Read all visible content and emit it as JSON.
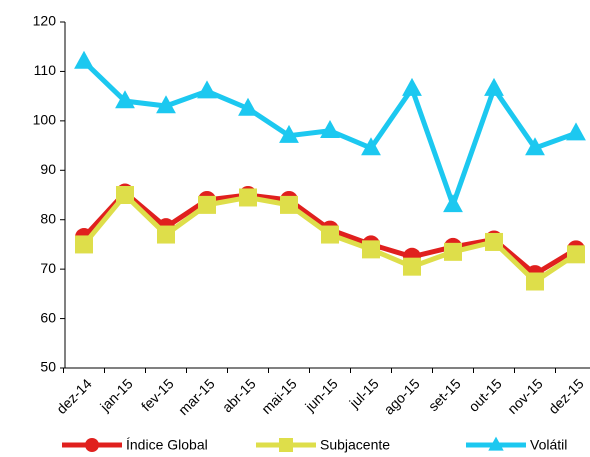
{
  "chart_data": {
    "type": "line",
    "categories": [
      "dez-14",
      "jan-15",
      "fev-15",
      "mar-15",
      "abr-15",
      "mai-15",
      "jun-15",
      "jul-15",
      "ago-15",
      "set-15",
      "out-15",
      "nov-15",
      "dez-15"
    ],
    "series": [
      {
        "name": "Índice Global",
        "color": "#e0201e",
        "marker": "circle",
        "values": [
          76.5,
          85.5,
          78.5,
          84,
          85,
          84,
          78,
          75,
          72.5,
          74.5,
          76,
          69,
          74
        ]
      },
      {
        "name": "Subjacente",
        "color": "#dede4a",
        "marker": "square",
        "values": [
          75,
          85,
          77,
          83,
          84.5,
          83,
          77,
          74,
          70.5,
          73.5,
          75.5,
          67.5,
          73
        ]
      },
      {
        "name": "Volátil",
        "color": "#1cc8f0",
        "marker": "triangle",
        "values": [
          112,
          104,
          103,
          106,
          102.5,
          97,
          98,
          94.5,
          106.5,
          83,
          106.5,
          94.5,
          97.5
        ]
      }
    ],
    "ylim": [
      50,
      120
    ],
    "yticks": [
      50,
      60,
      70,
      80,
      90,
      100,
      110,
      120
    ],
    "grid": false,
    "legend": "bottom"
  }
}
